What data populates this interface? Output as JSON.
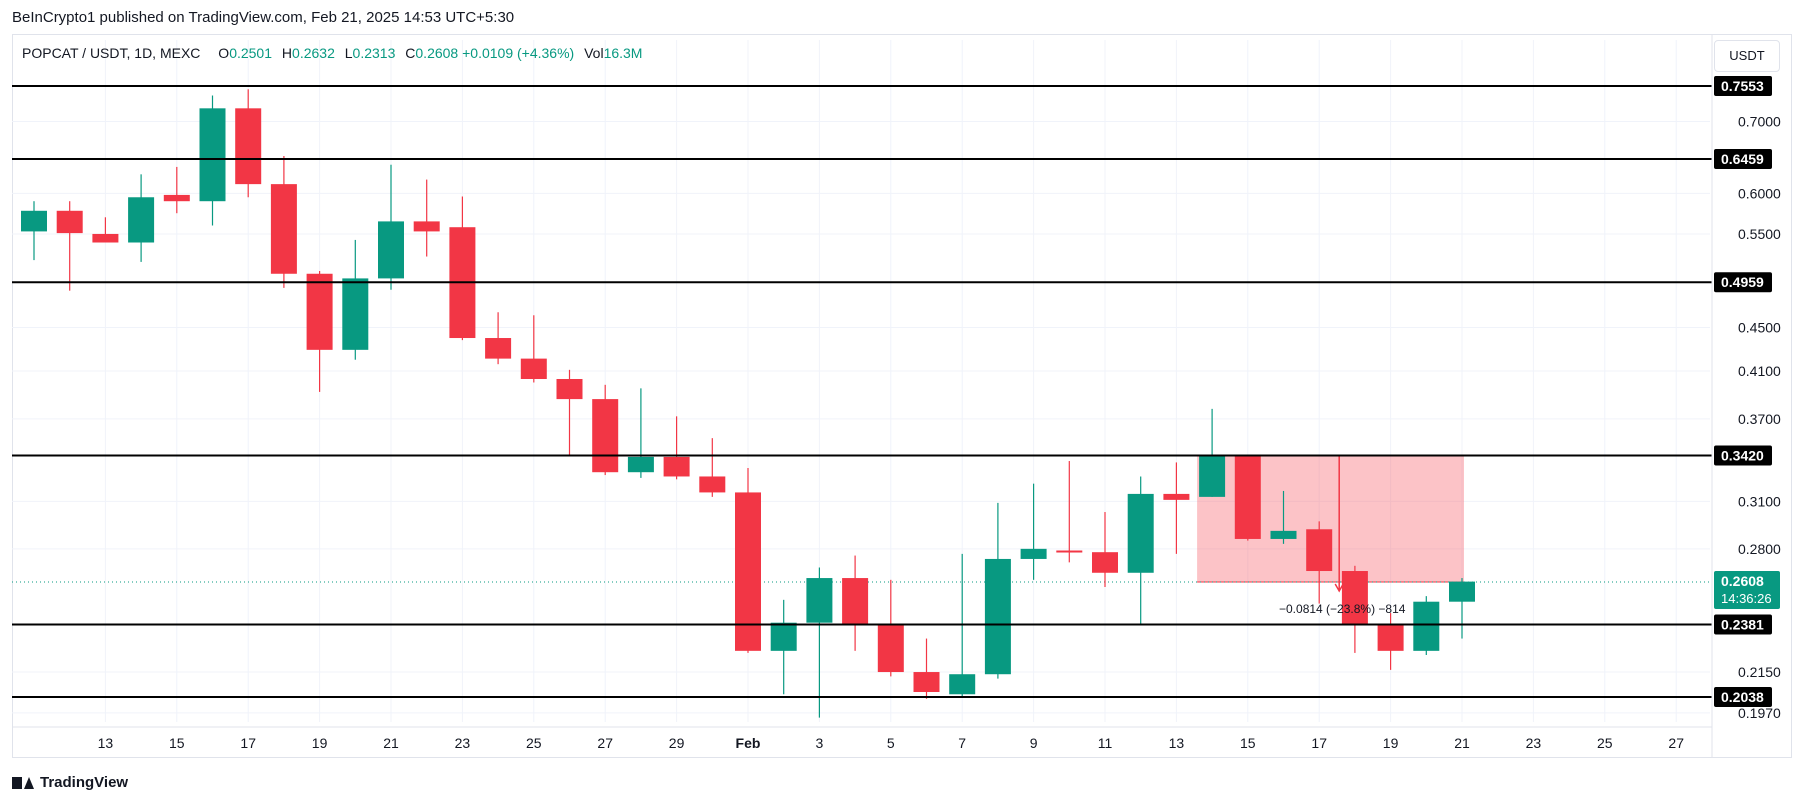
{
  "header": {
    "publisher": "BeInCrypto1 published on TradingView.com, Feb 21, 2025 14:53 UTC+5:30"
  },
  "legend": {
    "symbol": "POPCAT / USDT, 1D, MEXC",
    "o_label": "O",
    "o": "0.2501",
    "h_label": "H",
    "h": "0.2632",
    "l_label": "L",
    "l": "0.2313",
    "c_label": "C",
    "c": "0.2608",
    "change": "+0.0109 (+4.36%)",
    "vol_label": "Vol",
    "vol": "16.3M"
  },
  "currency_button": "USDT",
  "footer": {
    "logo": "TradingView"
  },
  "colors": {
    "up": "#089981",
    "down": "#f23645",
    "level": "#000000",
    "grid": "#f0f3fa",
    "zone": "#f7525f"
  },
  "chart_data": {
    "type": "candlestick",
    "price_axis": {
      "ticks": [
        "0.7000",
        "0.6000",
        "0.5500",
        "0.4500",
        "0.4100",
        "0.3700",
        "0.3100",
        "0.2800",
        "0.2150",
        "0.1970"
      ],
      "scale": "log"
    },
    "x_ticks": [
      "13",
      "15",
      "17",
      "19",
      "21",
      "23",
      "25",
      "27",
      "29",
      "Feb",
      "3",
      "5",
      "7",
      "9",
      "11",
      "13",
      "15",
      "17",
      "19",
      "21",
      "23",
      "25",
      "27"
    ],
    "levels": [
      "0.7553",
      "0.6459",
      "0.4959",
      "0.3420",
      "0.2381",
      "0.2038"
    ],
    "last_price": {
      "value": "0.2608",
      "countdown": "14:36:26"
    },
    "measure": {
      "text": "−0.0814 (−23.8%) −814"
    },
    "candles": [
      {
        "date": "2025-01-12",
        "o": 0.553,
        "h": 0.59,
        "l": 0.52,
        "c": 0.578
      },
      {
        "date": "2025-01-13",
        "o": 0.578,
        "h": 0.59,
        "l": 0.487,
        "c": 0.551
      },
      {
        "date": "2025-01-14",
        "o": 0.55,
        "h": 0.57,
        "l": 0.54,
        "c": 0.54
      },
      {
        "date": "2025-01-15",
        "o": 0.54,
        "h": 0.625,
        "l": 0.518,
        "c": 0.595
      },
      {
        "date": "2025-01-16",
        "o": 0.598,
        "h": 0.635,
        "l": 0.575,
        "c": 0.59
      },
      {
        "date": "2025-01-17",
        "o": 0.59,
        "h": 0.74,
        "l": 0.56,
        "c": 0.72
      },
      {
        "date": "2025-01-18",
        "o": 0.72,
        "h": 0.75,
        "l": 0.595,
        "c": 0.612
      },
      {
        "date": "2025-01-19",
        "o": 0.612,
        "h": 0.65,
        "l": 0.49,
        "c": 0.505
      },
      {
        "date": "2025-01-20",
        "o": 0.505,
        "h": 0.508,
        "l": 0.392,
        "c": 0.429
      },
      {
        "date": "2025-01-21",
        "o": 0.429,
        "h": 0.543,
        "l": 0.42,
        "c": 0.5
      },
      {
        "date": "2025-01-22",
        "o": 0.5,
        "h": 0.638,
        "l": 0.488,
        "c": 0.565
      },
      {
        "date": "2025-01-23",
        "o": 0.565,
        "h": 0.618,
        "l": 0.524,
        "c": 0.553
      },
      {
        "date": "2025-01-24",
        "o": 0.558,
        "h": 0.596,
        "l": 0.438,
        "c": 0.44
      },
      {
        "date": "2025-01-25",
        "o": 0.44,
        "h": 0.465,
        "l": 0.416,
        "c": 0.421
      },
      {
        "date": "2025-01-26",
        "o": 0.421,
        "h": 0.462,
        "l": 0.4,
        "c": 0.403
      },
      {
        "date": "2025-01-27",
        "o": 0.403,
        "h": 0.411,
        "l": 0.342,
        "c": 0.386
      },
      {
        "date": "2025-01-28",
        "o": 0.386,
        "h": 0.398,
        "l": 0.328,
        "c": 0.33
      },
      {
        "date": "2025-01-29",
        "o": 0.33,
        "h": 0.395,
        "l": 0.326,
        "c": 0.341
      },
      {
        "date": "2025-01-30",
        "o": 0.341,
        "h": 0.372,
        "l": 0.325,
        "c": 0.327
      },
      {
        "date": "2025-01-31",
        "o": 0.327,
        "h": 0.355,
        "l": 0.313,
        "c": 0.316
      },
      {
        "date": "2025-02-01",
        "o": 0.316,
        "h": 0.333,
        "l": 0.224,
        "c": 0.225
      },
      {
        "date": "2025-02-02",
        "o": 0.225,
        "h": 0.251,
        "l": 0.205,
        "c": 0.239
      },
      {
        "date": "2025-02-03",
        "o": 0.239,
        "h": 0.269,
        "l": 0.195,
        "c": 0.263
      },
      {
        "date": "2025-02-04",
        "o": 0.263,
        "h": 0.276,
        "l": 0.225,
        "c": 0.238
      },
      {
        "date": "2025-02-05",
        "o": 0.238,
        "h": 0.262,
        "l": 0.213,
        "c": 0.215
      },
      {
        "date": "2025-02-06",
        "o": 0.215,
        "h": 0.231,
        "l": 0.203,
        "c": 0.206
      },
      {
        "date": "2025-02-07",
        "o": 0.205,
        "h": 0.277,
        "l": 0.204,
        "c": 0.214
      },
      {
        "date": "2025-02-08",
        "o": 0.214,
        "h": 0.309,
        "l": 0.212,
        "c": 0.274
      },
      {
        "date": "2025-02-09",
        "o": 0.274,
        "h": 0.322,
        "l": 0.262,
        "c": 0.28
      },
      {
        "date": "2025-02-10",
        "o": 0.279,
        "h": 0.338,
        "l": 0.272,
        "c": 0.278
      },
      {
        "date": "2025-02-11",
        "o": 0.278,
        "h": 0.303,
        "l": 0.258,
        "c": 0.266
      },
      {
        "date": "2025-02-12",
        "o": 0.266,
        "h": 0.327,
        "l": 0.238,
        "c": 0.315
      },
      {
        "date": "2025-02-13",
        "o": 0.315,
        "h": 0.337,
        "l": 0.277,
        "c": 0.311
      },
      {
        "date": "2025-02-14",
        "o": 0.313,
        "h": 0.378,
        "l": 0.313,
        "c": 0.342
      },
      {
        "date": "2025-02-15",
        "o": 0.342,
        "h": 0.342,
        "l": 0.285,
        "c": 0.286
      },
      {
        "date": "2025-02-16",
        "o": 0.286,
        "h": 0.317,
        "l": 0.283,
        "c": 0.291
      },
      {
        "date": "2025-02-17",
        "o": 0.292,
        "h": 0.297,
        "l": 0.249,
        "c": 0.267
      },
      {
        "date": "2025-02-18",
        "o": 0.267,
        "h": 0.27,
        "l": 0.224,
        "c": 0.238
      },
      {
        "date": "2025-02-19",
        "o": 0.238,
        "h": 0.244,
        "l": 0.216,
        "c": 0.225
      },
      {
        "date": "2025-02-20",
        "o": 0.225,
        "h": 0.253,
        "l": 0.223,
        "c": 0.25
      },
      {
        "date": "2025-02-21",
        "o": 0.25,
        "h": 0.263,
        "l": 0.231,
        "c": 0.261
      }
    ],
    "zone": {
      "from": "2025-02-14",
      "to": "2025-02-21",
      "top": 0.342,
      "bottom": 0.2608
    },
    "grid": true
  }
}
